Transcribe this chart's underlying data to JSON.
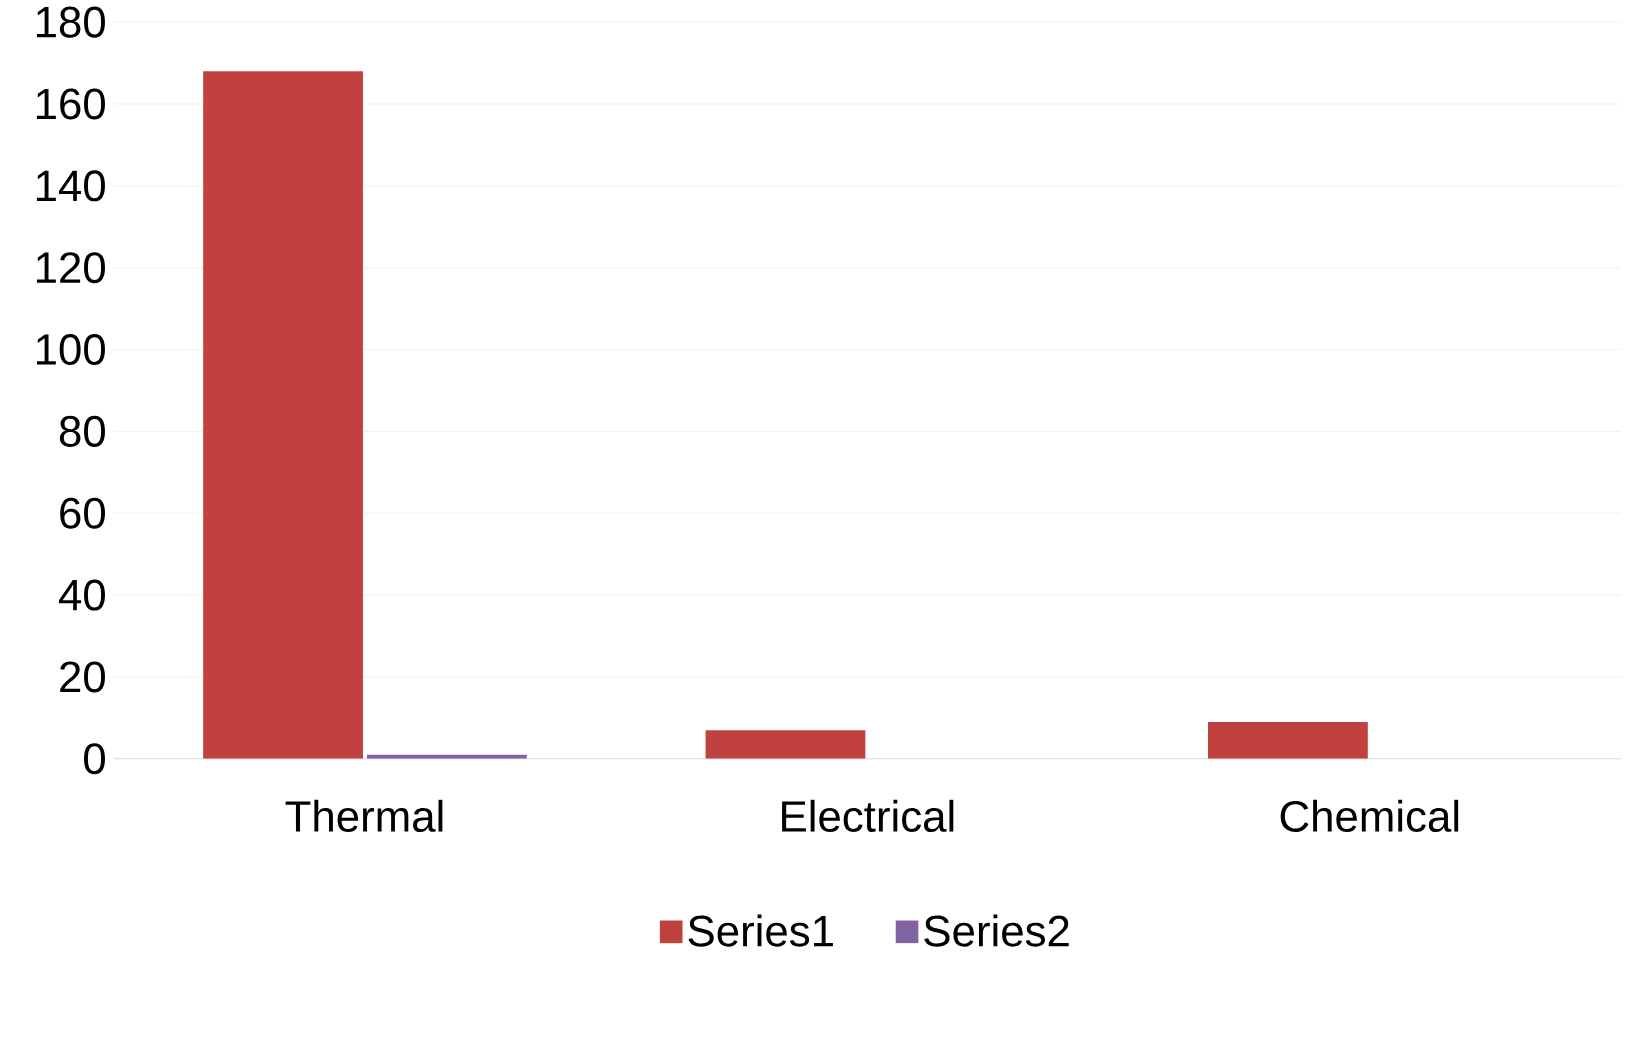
{
  "chart_data": {
    "type": "bar",
    "categories": [
      "Thermal",
      "Electrical",
      "Chemical"
    ],
    "series": [
      {
        "name": "Series1",
        "color": "#c0413e",
        "values": [
          168,
          7,
          9
        ]
      },
      {
        "name": "Series2",
        "color": "#8064a2",
        "values": [
          1,
          0,
          0
        ]
      }
    ],
    "ylim": [
      0,
      180
    ],
    "yticks": [
      0,
      20,
      40,
      60,
      80,
      100,
      120,
      140,
      160,
      180
    ],
    "grid": "y",
    "legend": "bottom"
  }
}
